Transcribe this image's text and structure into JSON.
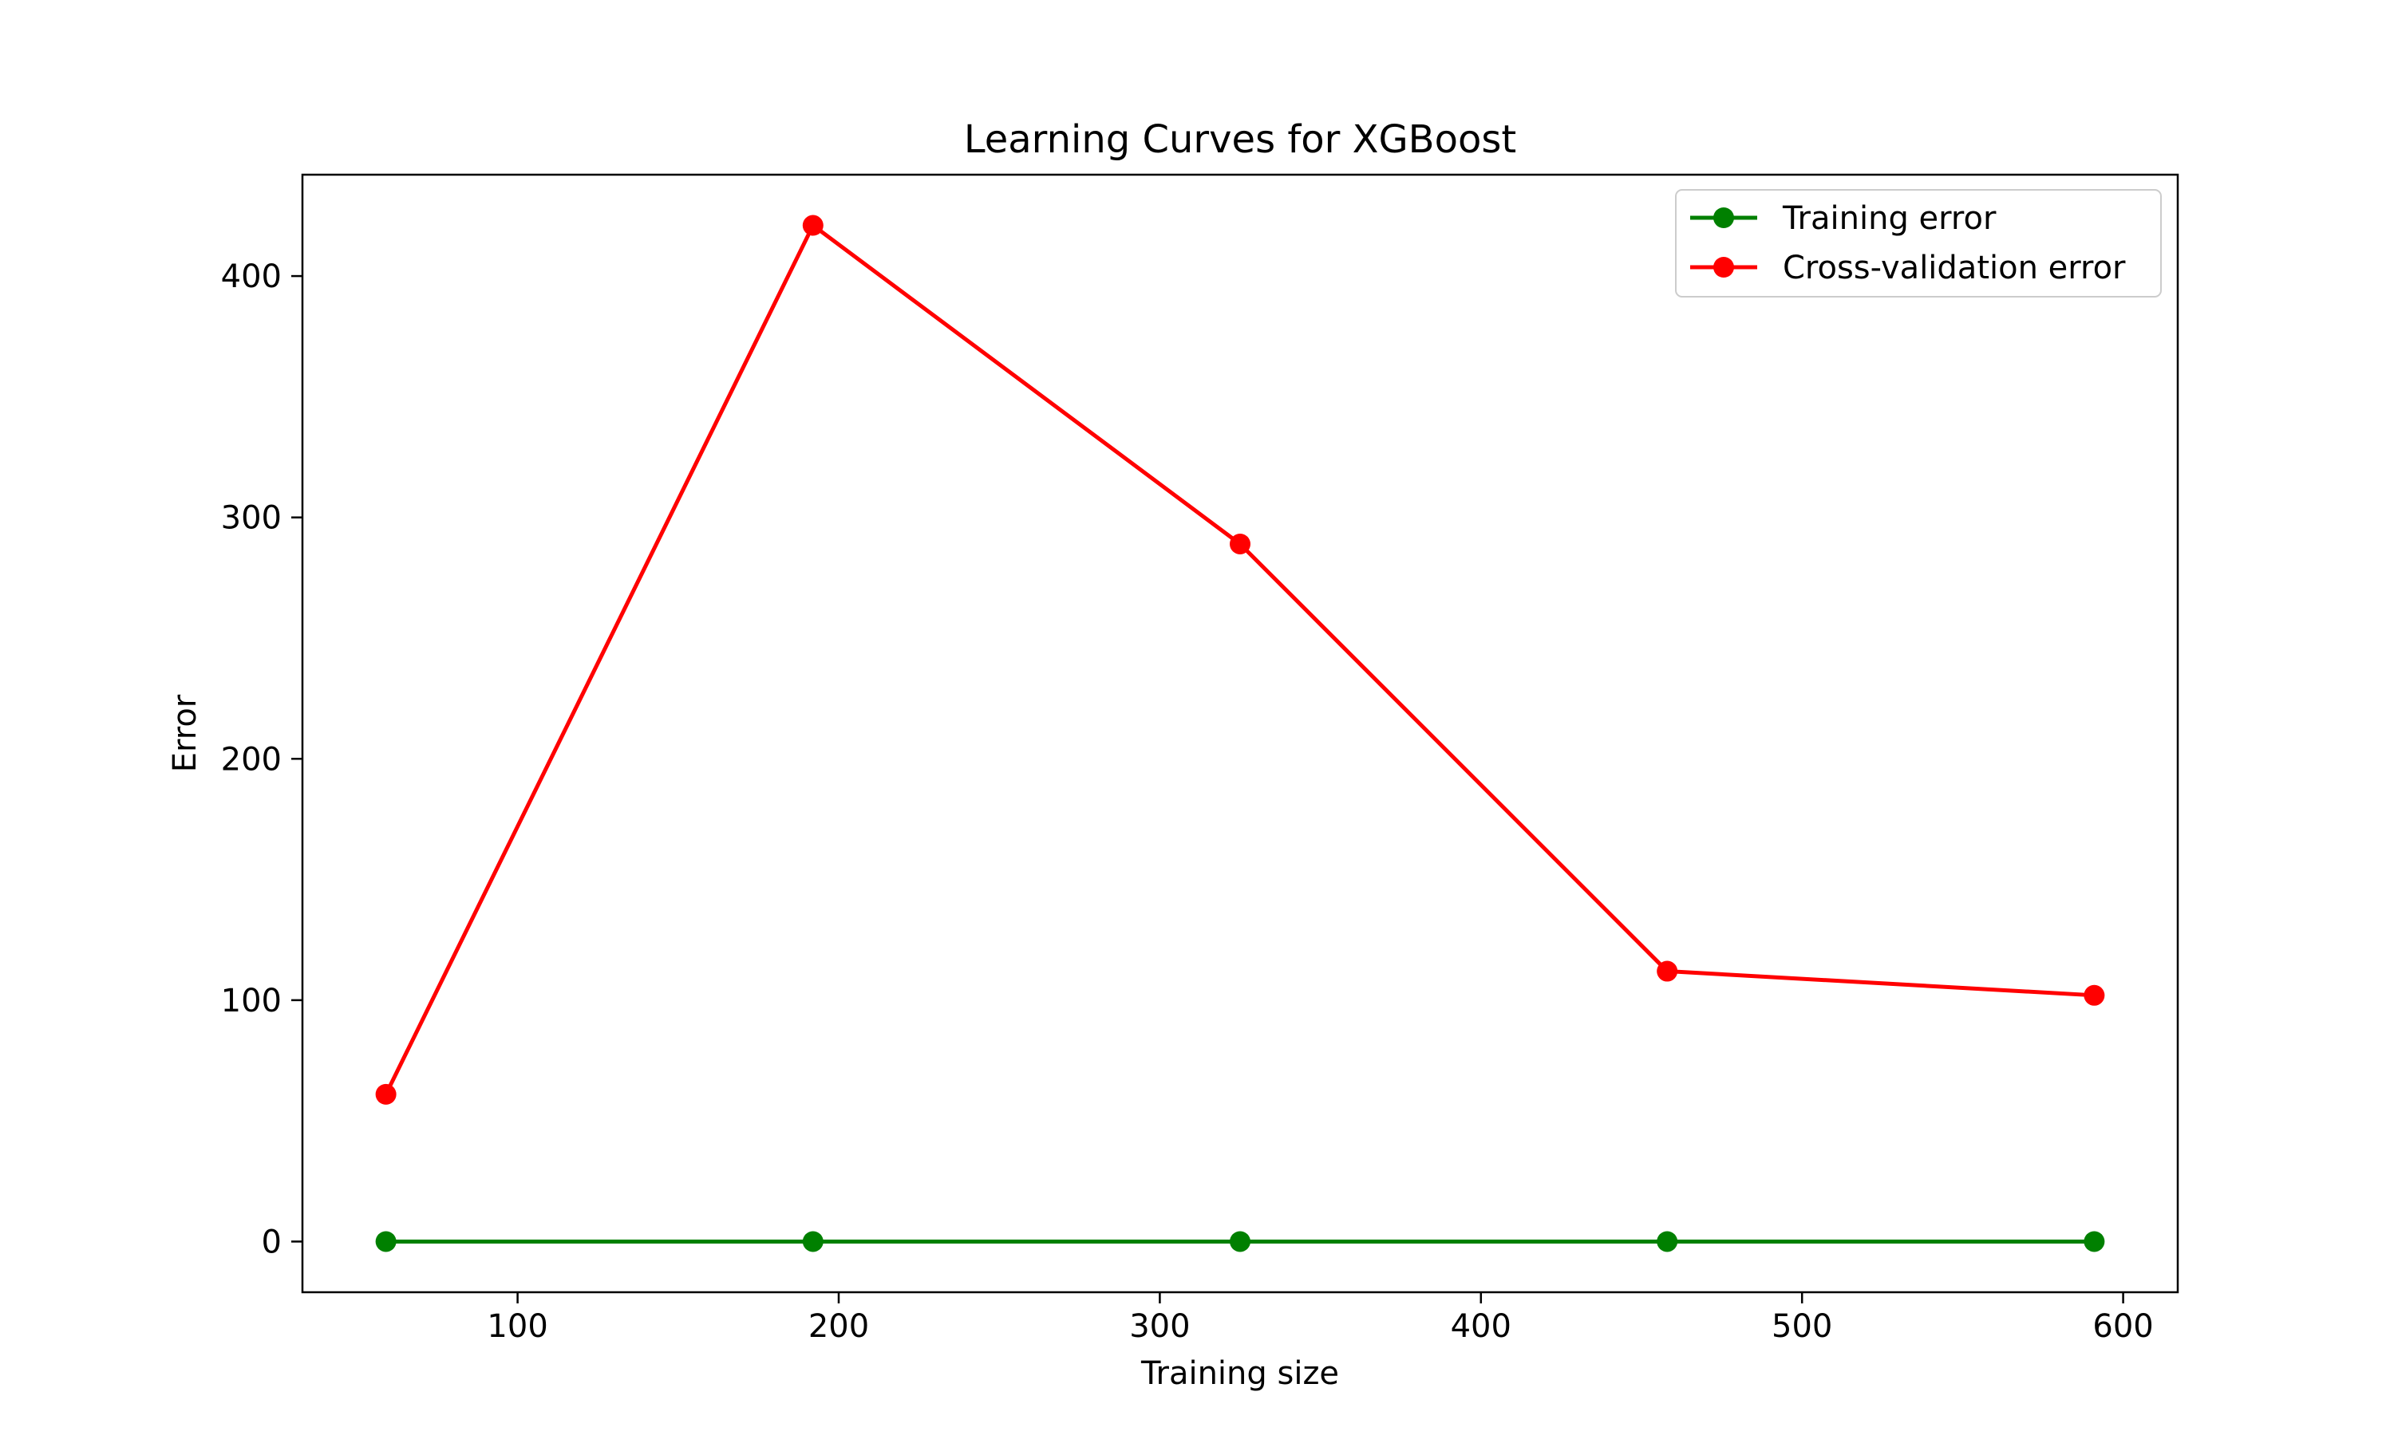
{
  "chart_data": {
    "type": "line",
    "title": "Learning Curves for XGBoost",
    "xlabel": "Training size",
    "ylabel": "Error",
    "xlim": [
      33,
      617
    ],
    "ylim": [
      -21,
      442
    ],
    "xticks": [
      100,
      200,
      300,
      400,
      500,
      600
    ],
    "yticks": [
      0,
      100,
      200,
      300,
      400
    ],
    "grid": false,
    "legend_position": "top-right",
    "x": [
      59,
      192,
      325,
      458,
      591
    ],
    "series": [
      {
        "name": "Training error",
        "color": "#008000",
        "marker": "circle",
        "values": [
          0,
          0,
          0,
          0,
          0
        ]
      },
      {
        "name": "Cross-validation error",
        "color": "#ff0000",
        "marker": "circle",
        "values": [
          61,
          421,
          289,
          112,
          102
        ]
      }
    ]
  }
}
